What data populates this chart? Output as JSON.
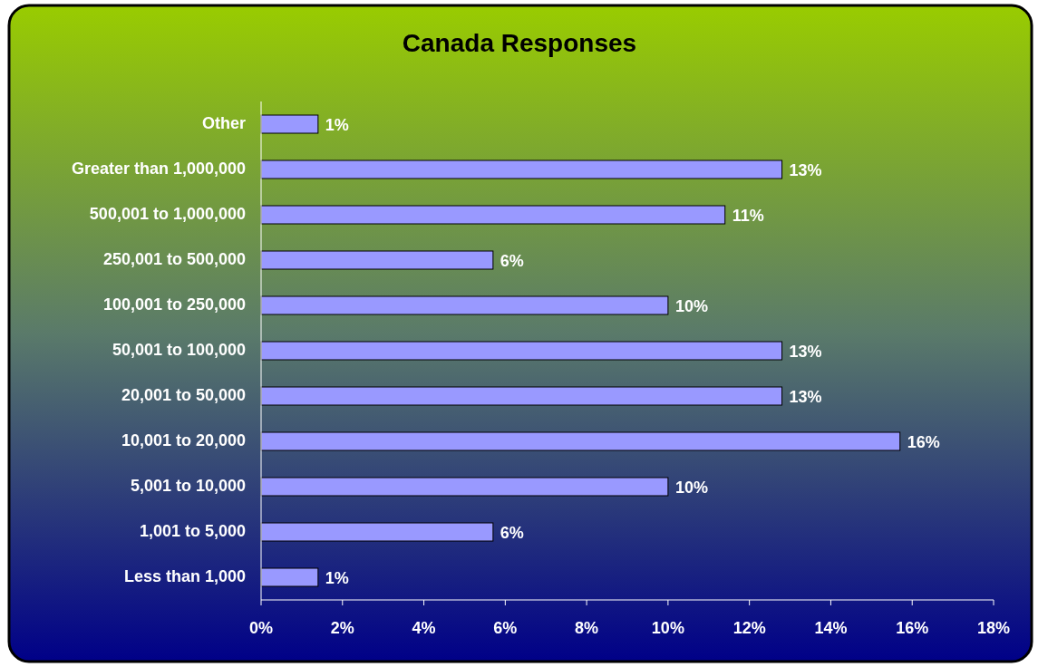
{
  "chart_data": {
    "type": "bar",
    "title": "Canada Responses",
    "orientation": "horizontal",
    "categories": [
      "Other",
      "Greater than 1,000,000",
      "500,001 to 1,000,000",
      "250,001 to 500,000",
      "100,001 to 250,000",
      "50,001 to 100,000",
      "20,001 to 50,000",
      "10,001 to 20,000",
      "5,001 to 10,000",
      "1,001 to 5,000",
      "Less than 1,000"
    ],
    "values": [
      1.4,
      12.8,
      11.4,
      5.7,
      10.0,
      12.8,
      12.8,
      15.7,
      10.0,
      5.7,
      1.4
    ],
    "value_labels": [
      "1%",
      "13%",
      "11%",
      "6%",
      "10%",
      "13%",
      "13%",
      "16%",
      "10%",
      "6%",
      "1%"
    ],
    "color": "#9999ff",
    "xlim": [
      0,
      18
    ],
    "xticks": [
      {
        "value": 0,
        "label": "0%"
      },
      {
        "value": 2,
        "label": "2%"
      },
      {
        "value": 4,
        "label": "4%"
      },
      {
        "value": 6,
        "label": "6%"
      },
      {
        "value": 8,
        "label": "8%"
      },
      {
        "value": 10,
        "label": "10%"
      },
      {
        "value": 12,
        "label": "12%"
      },
      {
        "value": 14,
        "label": "14%"
      },
      {
        "value": 16,
        "label": "16%"
      },
      {
        "value": 18,
        "label": "18%"
      }
    ],
    "grid": false
  }
}
